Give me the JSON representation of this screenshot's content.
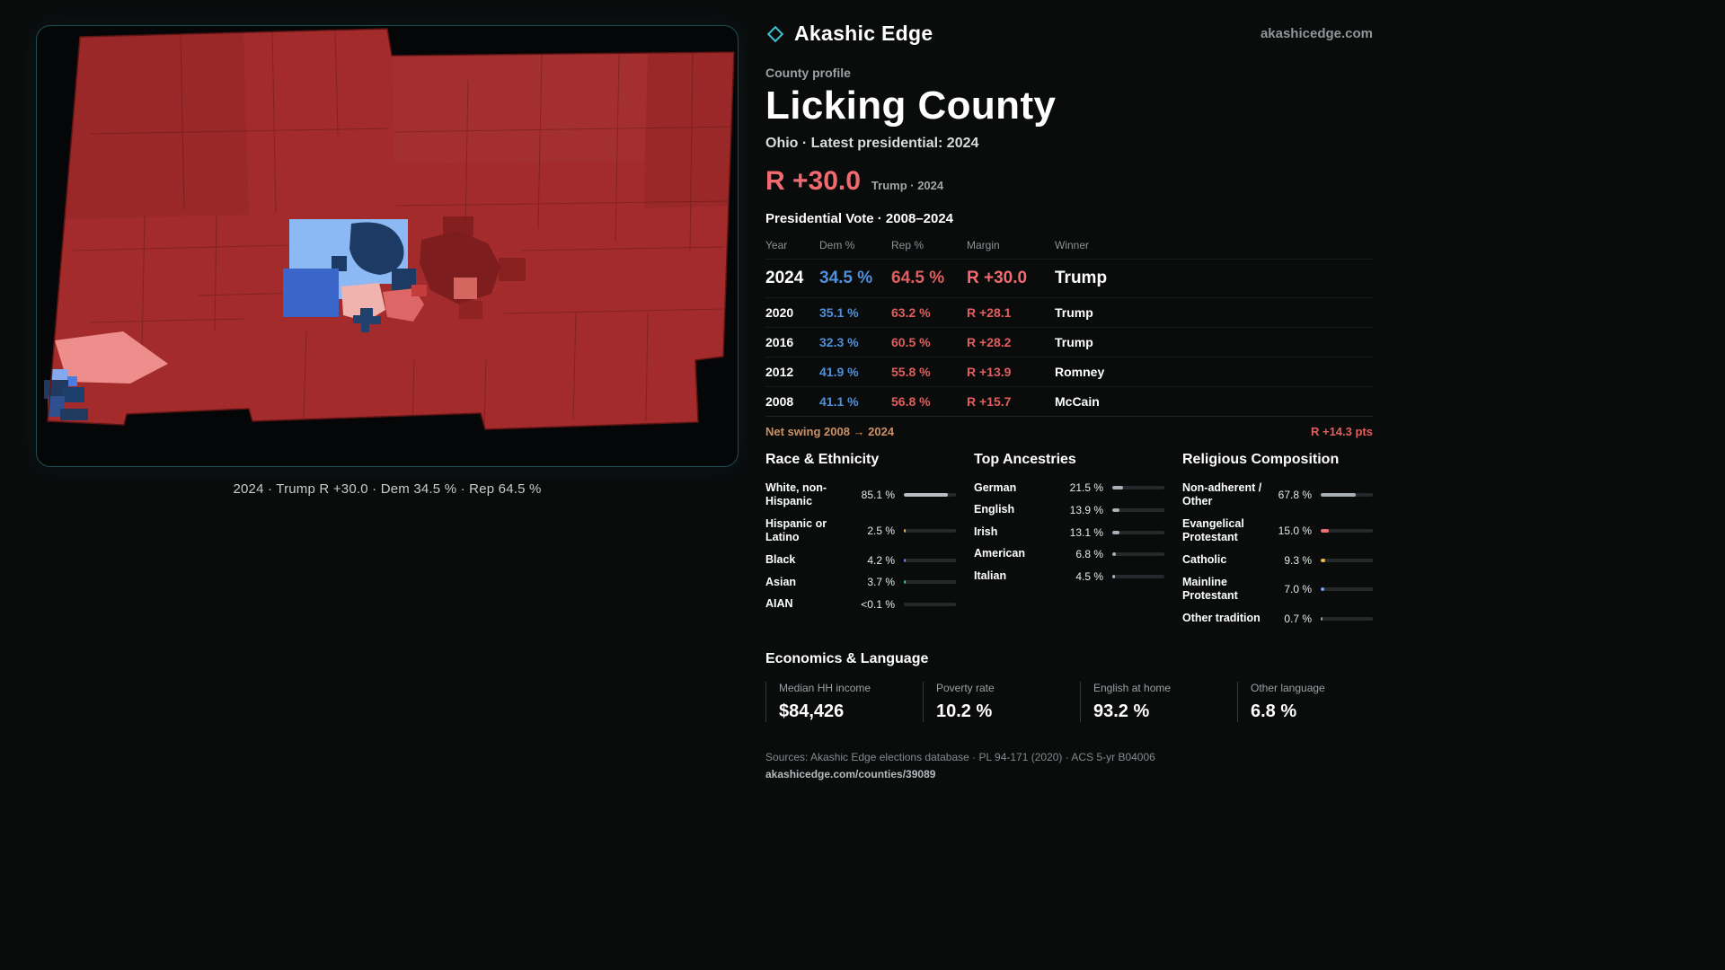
{
  "brand": {
    "name": "Akashic Edge",
    "domain": "akashicedge.com"
  },
  "map": {
    "caption": "2024 · Trump R +30.0 · Dem 34.5 % · Rep 64.5 %"
  },
  "profile": {
    "kicker": "County profile",
    "title": "Licking County",
    "subtitle": "Ohio · Latest presidential: 2024",
    "headline_margin": "R +30.0",
    "headline_note": "Trump · 2024"
  },
  "vote_table": {
    "title": "Presidential Vote · 2008–2024",
    "columns": [
      "Year",
      "Dem %",
      "Rep %",
      "Margin",
      "Winner"
    ],
    "rows": [
      {
        "year": "2024",
        "dem": "34.5 %",
        "rep": "64.5 %",
        "margin": "R +30.0",
        "winner": "Trump"
      },
      {
        "year": "2020",
        "dem": "35.1 %",
        "rep": "63.2 %",
        "margin": "R +28.1",
        "winner": "Trump"
      },
      {
        "year": "2016",
        "dem": "32.3 %",
        "rep": "60.5 %",
        "margin": "R +28.2",
        "winner": "Trump"
      },
      {
        "year": "2012",
        "dem": "41.9 %",
        "rep": "55.8 %",
        "margin": "R +13.9",
        "winner": "Romney"
      },
      {
        "year": "2008",
        "dem": "41.1 %",
        "rep": "56.8 %",
        "margin": "R +15.7",
        "winner": "McCain"
      }
    ],
    "net_swing_label": "Net swing 2008 → 2024",
    "net_swing_value": "R +14.3 pts"
  },
  "demographics": {
    "race": {
      "title": "Race & Ethnicity",
      "rows": [
        {
          "label": "White, non-Hispanic",
          "value": "85.1 %",
          "pct": 85.1,
          "color": "#b9bec6"
        },
        {
          "label": "Hispanic or Latino",
          "value": "2.5 %",
          "pct": 2.5,
          "color": "#e5b94e"
        },
        {
          "label": "Black",
          "value": "4.2 %",
          "pct": 4.2,
          "color": "#7b82f0"
        },
        {
          "label": "Asian",
          "value": "3.7 %",
          "pct": 3.7,
          "color": "#36c9a4"
        },
        {
          "label": "AIAN",
          "value": "<0.1 %",
          "pct": 0,
          "color": "#9aa0a6"
        }
      ]
    },
    "ancestries": {
      "title": "Top Ancestries",
      "rows": [
        {
          "label": "German",
          "value": "21.5 %",
          "pct": 21.5,
          "color": "#a9afb6"
        },
        {
          "label": "English",
          "value": "13.9 %",
          "pct": 13.9,
          "color": "#a9afb6"
        },
        {
          "label": "Irish",
          "value": "13.1 %",
          "pct": 13.1,
          "color": "#a9afb6"
        },
        {
          "label": "American",
          "value": "6.8 %",
          "pct": 6.8,
          "color": "#a9afb6"
        },
        {
          "label": "Italian",
          "value": "4.5 %",
          "pct": 4.5,
          "color": "#a9afb6"
        }
      ]
    },
    "religion": {
      "title": "Religious Composition",
      "rows": [
        {
          "label": "Non-adherent / Other",
          "value": "67.8 %",
          "pct": 67.8,
          "color": "#a9afb6"
        },
        {
          "label": "Evangelical Protestant",
          "value": "15.0 %",
          "pct": 15.0,
          "color": "#ef6d77"
        },
        {
          "label": "Catholic",
          "value": "9.3 %",
          "pct": 9.3,
          "color": "#e8b64b"
        },
        {
          "label": "Mainline Protestant",
          "value": "7.0 %",
          "pct": 7.0,
          "color": "#6fa0f5"
        },
        {
          "label": "Other tradition",
          "value": "0.7 %",
          "pct": 0.7,
          "color": "#9aa0a6"
        }
      ]
    }
  },
  "economics": {
    "title": "Economics & Language",
    "stats": [
      {
        "label": "Median HH income",
        "value": "$84,426"
      },
      {
        "label": "Poverty rate",
        "value": "10.2 %"
      },
      {
        "label": "English at home",
        "value": "93.2 %"
      },
      {
        "label": "Other language",
        "value": "6.8 %"
      }
    ]
  },
  "footer": {
    "sources": "Sources: Akashic Edge elections database · PL 94-171 (2020) · ACS 5-yr B04006",
    "permalink": "akashicedge.com/counties/39089"
  }
}
